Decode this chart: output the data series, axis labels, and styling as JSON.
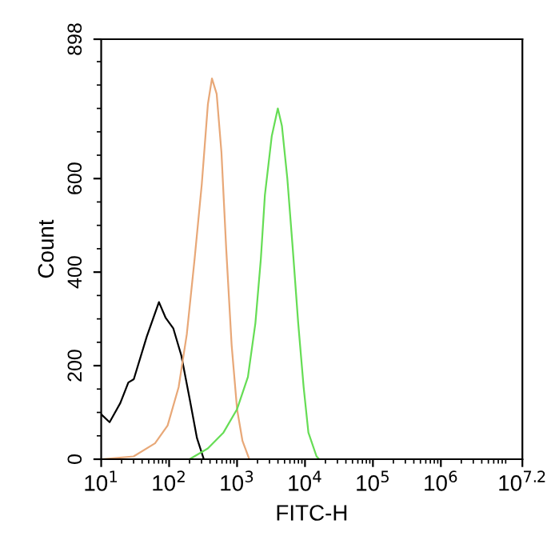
{
  "chart_data": {
    "type": "line",
    "xlabel": "FITC-H",
    "ylabel": "Count",
    "log": "x",
    "grid": false,
    "marker": "none",
    "line_style": "solid",
    "xlim": [
      10,
      15848932
    ],
    "ylim": [
      0,
      898
    ],
    "xticks": [
      {
        "value": 10,
        "label": "10$^{1}$"
      },
      {
        "value": 100,
        "label": "10$^{2}$"
      },
      {
        "value": 1000,
        "label": "10$^{3}$"
      },
      {
        "value": 10000,
        "label": "10$^{4}$"
      },
      {
        "value": 100000,
        "label": "10$^{5}$"
      },
      {
        "value": 1000000,
        "label": "10$^{6}$"
      },
      {
        "value": 15848932,
        "label": "10$^{7.2}$"
      }
    ],
    "yticks": [
      0,
      200,
      400,
      600,
      898
    ],
    "series": [
      {
        "color": "#000000",
        "x": [
          10,
          13.3,
          19.1,
          25.1,
          30.2,
          46.8,
          70.8,
          89.1,
          115,
          151,
          200,
          257,
          324
        ],
        "values": [
          96,
          79,
          120,
          164,
          171,
          262,
          336,
          302,
          280,
          222,
          130,
          45,
          0
        ]
      },
      {
        "color": "#e8a878",
        "x": [
          10,
          30,
          62,
          95,
          138,
          182,
          237,
          302,
          372,
          427,
          501,
          589,
          692,
          832,
          1000,
          1202,
          1514
        ],
        "values": [
          0,
          6,
          34,
          72,
          154,
          267,
          428,
          587,
          759,
          814,
          781,
          656,
          450,
          244,
          107,
          39,
          0
        ]
      },
      {
        "color": "#66dd55",
        "x": [
          200,
          372,
          631,
          1000,
          1445,
          1862,
          2239,
          2570,
          3236,
          3981,
          4571,
          5495,
          6607,
          7943,
          9550,
          11220,
          14791,
          16218
        ],
        "values": [
          0,
          23,
          57,
          107,
          176,
          291,
          428,
          565,
          690,
          750,
          713,
          600,
          450,
          291,
          154,
          57,
          6,
          0
        ]
      }
    ]
  }
}
